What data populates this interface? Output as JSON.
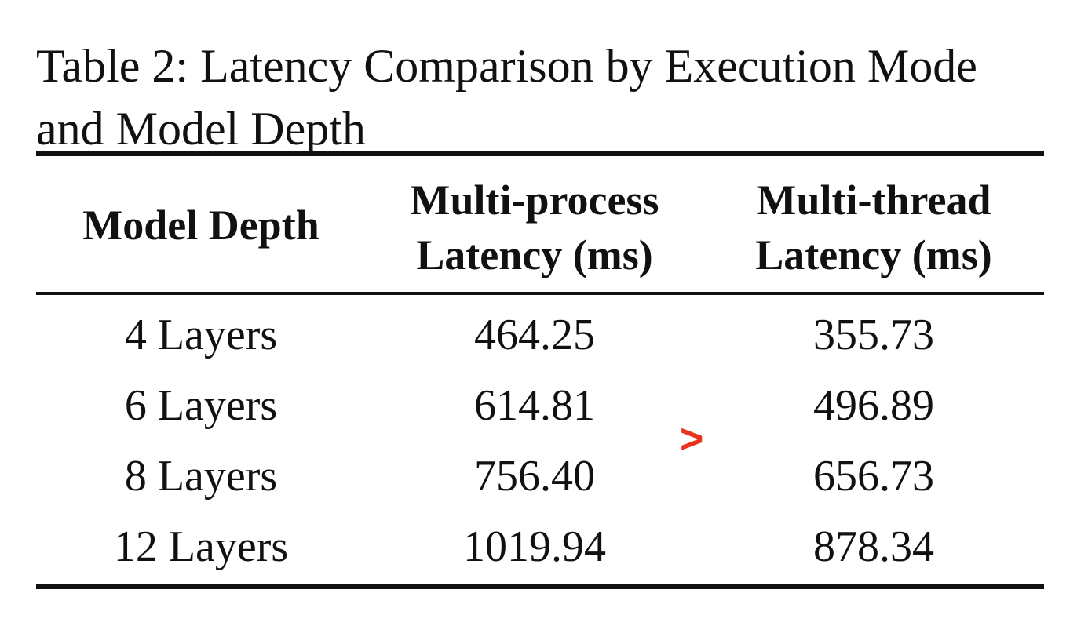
{
  "caption": {
    "line1": "Table 2: Latency Comparison by Execution Mode",
    "line2": "and Model Depth"
  },
  "table": {
    "headers": [
      [
        "Model Depth"
      ],
      [
        "Multi-process",
        "Latency (ms)"
      ],
      [
        "Multi-thread",
        "Latency (ms)"
      ]
    ],
    "rows": [
      [
        "4 Layers",
        "464.25",
        "355.73"
      ],
      [
        "6 Layers",
        "614.81",
        "496.89"
      ],
      [
        "8 Layers",
        "756.40",
        "656.73"
      ],
      [
        "12 Layers",
        "1019.94",
        "878.34"
      ]
    ]
  },
  "annotation": {
    "symbol": ">",
    "color": "#e8341c"
  }
}
